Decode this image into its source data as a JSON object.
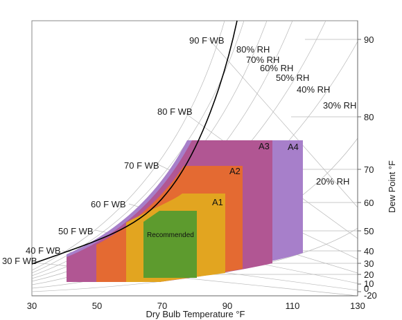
{
  "chart_data": {
    "type": "psychrometric",
    "xlabel": "Dry Bulb Temperature °F",
    "ylabel": "Dew Point °F",
    "x_ticks": [
      "30",
      "50",
      "70",
      "90",
      "110",
      "130"
    ],
    "dew_point_ticks": [
      "90",
      "80",
      "70",
      "60",
      "50",
      "40",
      "30",
      "20",
      "10",
      "0",
      "-20"
    ],
    "wet_bulb_labels": [
      "90 F WB",
      "80 F WB",
      "70 F WB",
      "60 F WB",
      "50 F WB",
      "40 F WB",
      "30 F WB"
    ],
    "rh_labels": [
      "80% RH",
      "70% RH",
      "60% RH",
      "50% RH",
      "40% RH",
      "30% RH",
      "20% RH"
    ],
    "zones": [
      {
        "name": "A4",
        "color": "#a77fca"
      },
      {
        "name": "A3",
        "color": "#b15693"
      },
      {
        "name": "A2",
        "color": "#e46a32"
      },
      {
        "name": "A1",
        "color": "#e2a520"
      },
      {
        "name": "Recommended",
        "color": "#5d9b2e"
      }
    ],
    "grid": true
  }
}
